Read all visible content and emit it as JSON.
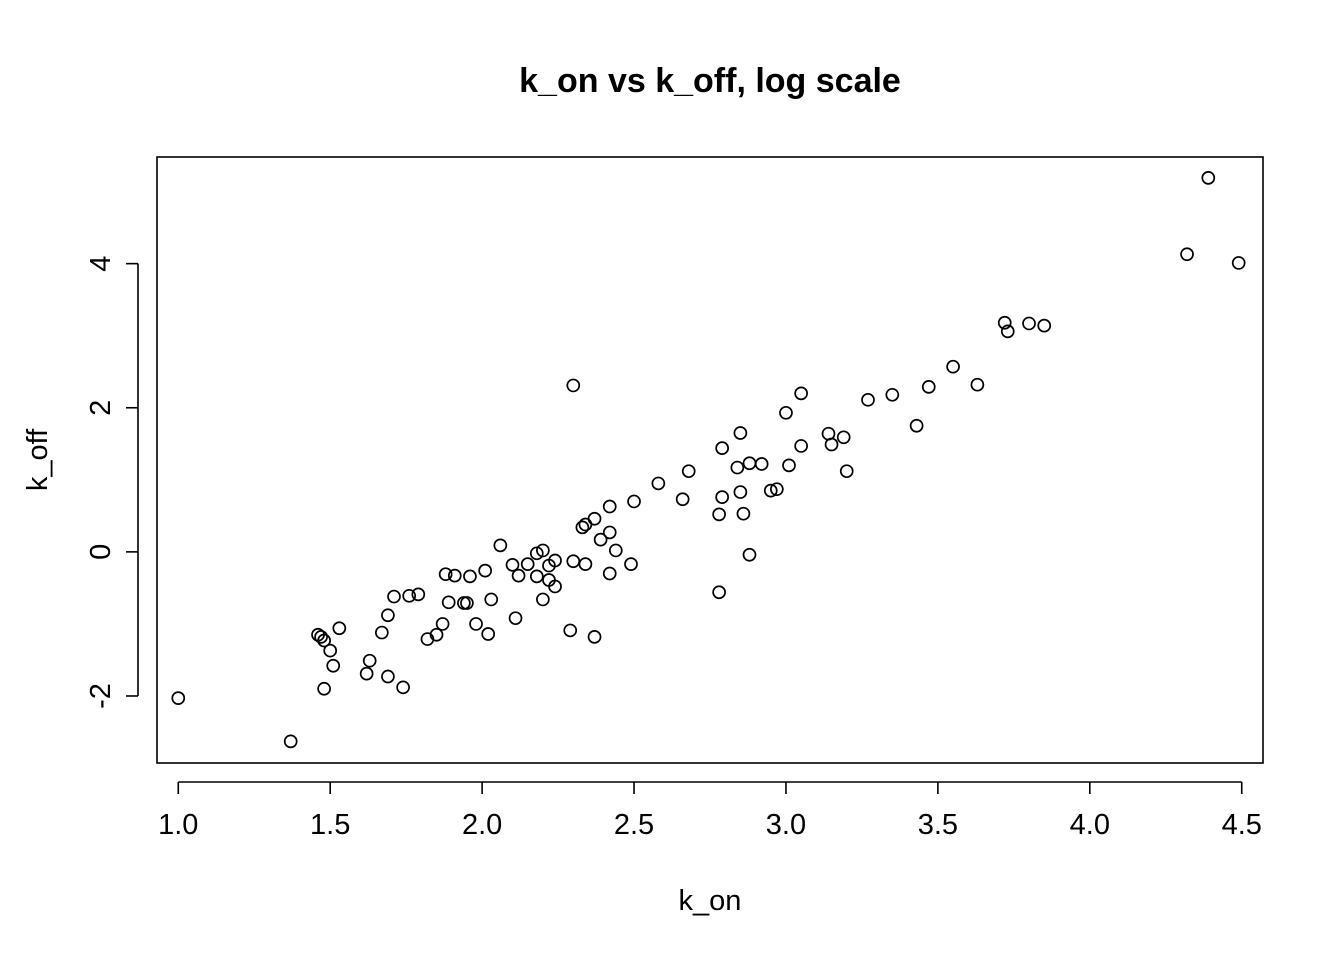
{
  "chart_data": {
    "type": "scatter",
    "title": "k_on vs k_off, log scale",
    "xlabel": "k_on",
    "ylabel": "k_off",
    "xlim": [
      0.93,
      4.57
    ],
    "ylim": [
      -2.93,
      5.48
    ],
    "xticks": [
      1.0,
      1.5,
      2.0,
      2.5,
      3.0,
      3.5,
      4.0,
      4.5
    ],
    "xtick_labels": [
      "1.0",
      "1.5",
      "2.0",
      "2.5",
      "3.0",
      "3.5",
      "4.0",
      "4.5"
    ],
    "yticks": [
      -2,
      0,
      2,
      4
    ],
    "ytick_labels": [
      "-2",
      "0",
      "2",
      "4"
    ],
    "grid": false,
    "marker": "open-circle",
    "points": [
      {
        "x": 1.0,
        "y": -2.03
      },
      {
        "x": 1.37,
        "y": -2.63
      },
      {
        "x": 1.46,
        "y": -1.15
      },
      {
        "x": 1.47,
        "y": -1.18
      },
      {
        "x": 1.48,
        "y": -1.23
      },
      {
        "x": 1.48,
        "y": -1.9
      },
      {
        "x": 1.5,
        "y": -1.37
      },
      {
        "x": 1.51,
        "y": -1.58
      },
      {
        "x": 1.53,
        "y": -1.06
      },
      {
        "x": 1.62,
        "y": -1.69
      },
      {
        "x": 1.63,
        "y": -1.51
      },
      {
        "x": 1.67,
        "y": -1.12
      },
      {
        "x": 1.69,
        "y": -0.88
      },
      {
        "x": 1.69,
        "y": -1.73
      },
      {
        "x": 1.71,
        "y": -0.62
      },
      {
        "x": 1.74,
        "y": -1.88
      },
      {
        "x": 1.76,
        "y": -0.61
      },
      {
        "x": 1.79,
        "y": -0.59
      },
      {
        "x": 1.82,
        "y": -1.21
      },
      {
        "x": 1.85,
        "y": -1.15
      },
      {
        "x": 1.87,
        "y": -1.0
      },
      {
        "x": 1.88,
        "y": -0.31
      },
      {
        "x": 1.89,
        "y": -0.7
      },
      {
        "x": 1.91,
        "y": -0.33
      },
      {
        "x": 1.94,
        "y": -0.71
      },
      {
        "x": 1.95,
        "y": -0.71
      },
      {
        "x": 1.96,
        "y": -0.34
      },
      {
        "x": 1.98,
        "y": -1.0
      },
      {
        "x": 2.01,
        "y": -0.26
      },
      {
        "x": 2.02,
        "y": -1.14
      },
      {
        "x": 2.03,
        "y": -0.66
      },
      {
        "x": 2.06,
        "y": 0.09
      },
      {
        "x": 2.1,
        "y": -0.18
      },
      {
        "x": 2.11,
        "y": -0.92
      },
      {
        "x": 2.12,
        "y": -0.33
      },
      {
        "x": 2.15,
        "y": -0.17
      },
      {
        "x": 2.18,
        "y": -0.02
      },
      {
        "x": 2.18,
        "y": -0.34
      },
      {
        "x": 2.2,
        "y": 0.02
      },
      {
        "x": 2.2,
        "y": -0.66
      },
      {
        "x": 2.22,
        "y": -0.19
      },
      {
        "x": 2.22,
        "y": -0.39
      },
      {
        "x": 2.24,
        "y": -0.12
      },
      {
        "x": 2.24,
        "y": -0.48
      },
      {
        "x": 2.29,
        "y": -1.09
      },
      {
        "x": 2.3,
        "y": -0.13
      },
      {
        "x": 2.3,
        "y": 2.31
      },
      {
        "x": 2.33,
        "y": 0.34
      },
      {
        "x": 2.34,
        "y": 0.38
      },
      {
        "x": 2.34,
        "y": -0.17
      },
      {
        "x": 2.37,
        "y": 0.46
      },
      {
        "x": 2.37,
        "y": -1.18
      },
      {
        "x": 2.39,
        "y": 0.17
      },
      {
        "x": 2.42,
        "y": 0.63
      },
      {
        "x": 2.42,
        "y": 0.27
      },
      {
        "x": 2.42,
        "y": -0.3
      },
      {
        "x": 2.44,
        "y": 0.02
      },
      {
        "x": 2.49,
        "y": -0.17
      },
      {
        "x": 2.5,
        "y": 0.7
      },
      {
        "x": 2.58,
        "y": 0.95
      },
      {
        "x": 2.66,
        "y": 0.73
      },
      {
        "x": 2.68,
        "y": 1.12
      },
      {
        "x": 2.78,
        "y": -0.56
      },
      {
        "x": 2.78,
        "y": 0.52
      },
      {
        "x": 2.79,
        "y": 1.44
      },
      {
        "x": 2.79,
        "y": 0.76
      },
      {
        "x": 2.84,
        "y": 1.17
      },
      {
        "x": 2.85,
        "y": 0.83
      },
      {
        "x": 2.85,
        "y": 1.65
      },
      {
        "x": 2.86,
        "y": 0.53
      },
      {
        "x": 2.88,
        "y": 1.23
      },
      {
        "x": 2.88,
        "y": -0.04
      },
      {
        "x": 2.92,
        "y": 1.22
      },
      {
        "x": 2.95,
        "y": 0.85
      },
      {
        "x": 2.97,
        "y": 0.87
      },
      {
        "x": 3.0,
        "y": 1.93
      },
      {
        "x": 3.01,
        "y": 1.2
      },
      {
        "x": 3.05,
        "y": 2.2
      },
      {
        "x": 3.05,
        "y": 1.47
      },
      {
        "x": 3.14,
        "y": 1.64
      },
      {
        "x": 3.15,
        "y": 1.49
      },
      {
        "x": 3.19,
        "y": 1.59
      },
      {
        "x": 3.2,
        "y": 1.12
      },
      {
        "x": 3.27,
        "y": 2.11
      },
      {
        "x": 3.35,
        "y": 2.18
      },
      {
        "x": 3.43,
        "y": 1.75
      },
      {
        "x": 3.47,
        "y": 2.29
      },
      {
        "x": 3.55,
        "y": 2.57
      },
      {
        "x": 3.63,
        "y": 2.32
      },
      {
        "x": 3.72,
        "y": 3.18
      },
      {
        "x": 3.73,
        "y": 3.06
      },
      {
        "x": 3.8,
        "y": 3.17
      },
      {
        "x": 3.85,
        "y": 3.14
      },
      {
        "x": 4.32,
        "y": 4.13
      },
      {
        "x": 4.39,
        "y": 5.19
      },
      {
        "x": 4.49,
        "y": 4.01
      }
    ]
  }
}
